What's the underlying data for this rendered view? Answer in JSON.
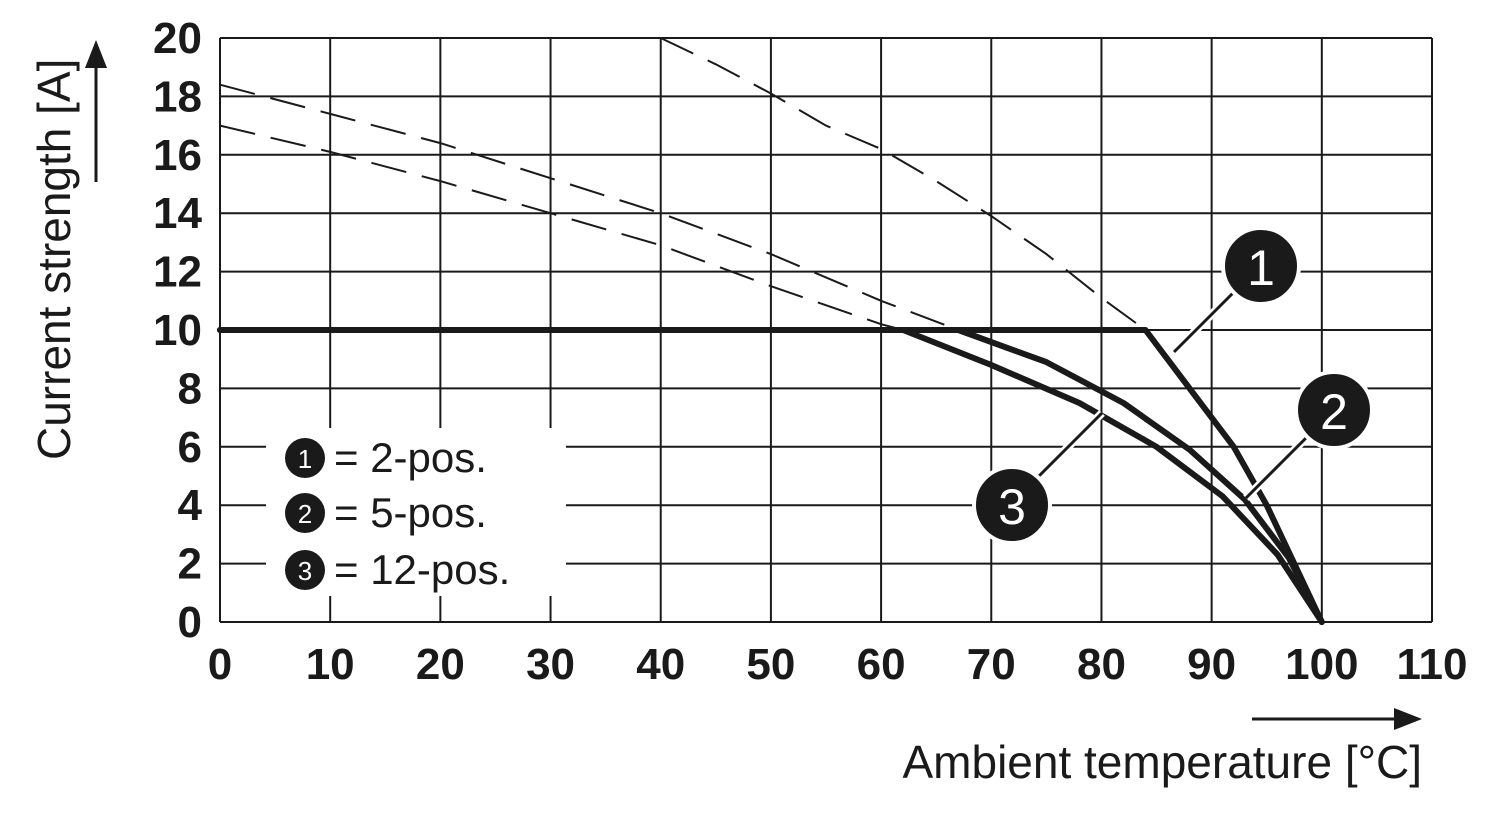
{
  "chart_data": {
    "type": "line",
    "xlabel": "Ambient temperature [°C]",
    "ylabel": "Current strength [A]",
    "xlim": [
      0,
      110
    ],
    "ylim": [
      0,
      20
    ],
    "x_ticks": [
      "0",
      "10",
      "20",
      "30",
      "40",
      "50",
      "60",
      "70",
      "80",
      "90",
      "100",
      "110"
    ],
    "y_ticks": [
      "0",
      "2",
      "4",
      "6",
      "8",
      "10",
      "12",
      "14",
      "16",
      "18",
      "20"
    ],
    "grid": true,
    "legend_position": "lower-left",
    "legend": [
      {
        "marker": "1",
        "text": "= 2-pos."
      },
      {
        "marker": "2",
        "text": "= 5-pos."
      },
      {
        "marker": "3",
        "text": "= 12-pos."
      }
    ],
    "series": [
      {
        "marker": "1",
        "limited": [
          [
            0,
            10
          ],
          [
            84,
            10
          ],
          [
            88,
            8
          ],
          [
            92,
            6
          ],
          [
            95,
            4
          ],
          [
            97.5,
            2
          ],
          [
            100,
            0
          ]
        ],
        "dashed": [
          [
            40,
            20
          ],
          [
            45,
            19.1
          ],
          [
            50,
            18.1
          ],
          [
            55,
            17
          ],
          [
            60,
            16.2
          ],
          [
            65,
            15.1
          ],
          [
            70,
            13.9
          ],
          [
            75,
            12.6
          ],
          [
            80,
            11.1
          ],
          [
            84,
            10
          ]
        ]
      },
      {
        "marker": "2",
        "limited": [
          [
            0,
            10
          ],
          [
            67,
            10
          ],
          [
            75,
            8.9
          ],
          [
            82,
            7.5
          ],
          [
            88,
            5.9
          ],
          [
            93,
            4.2
          ],
          [
            97,
            2.2
          ],
          [
            100,
            0
          ]
        ],
        "dashed": [
          [
            0,
            18.4
          ],
          [
            10,
            17.4
          ],
          [
            20,
            16.4
          ],
          [
            30,
            15.2
          ],
          [
            40,
            14
          ],
          [
            50,
            12.6
          ],
          [
            60,
            11
          ],
          [
            67,
            10
          ]
        ]
      },
      {
        "marker": "3",
        "limited": [
          [
            0,
            10
          ],
          [
            62,
            10
          ],
          [
            70,
            8.8
          ],
          [
            78,
            7.5
          ],
          [
            85,
            6
          ],
          [
            91,
            4.3
          ],
          [
            96,
            2.3
          ],
          [
            100,
            0
          ]
        ],
        "dashed": [
          [
            0,
            17
          ],
          [
            10,
            16.1
          ],
          [
            20,
            15.1
          ],
          [
            30,
            14
          ],
          [
            40,
            12.9
          ],
          [
            50,
            11.5
          ],
          [
            60,
            10.2
          ],
          [
            62,
            10
          ]
        ]
      }
    ],
    "callouts": [
      {
        "marker": "1",
        "series_point": [
          86,
          9
        ]
      },
      {
        "marker": "2",
        "series_point": [
          93,
          4.2
        ]
      },
      {
        "marker": "3",
        "series_point": [
          80,
          7
        ]
      }
    ],
    "colors": {
      "line": "#1a1a1a",
      "grid": "#1a1a1a",
      "background": "#ffffff",
      "badge": "#1a1a1a"
    }
  }
}
